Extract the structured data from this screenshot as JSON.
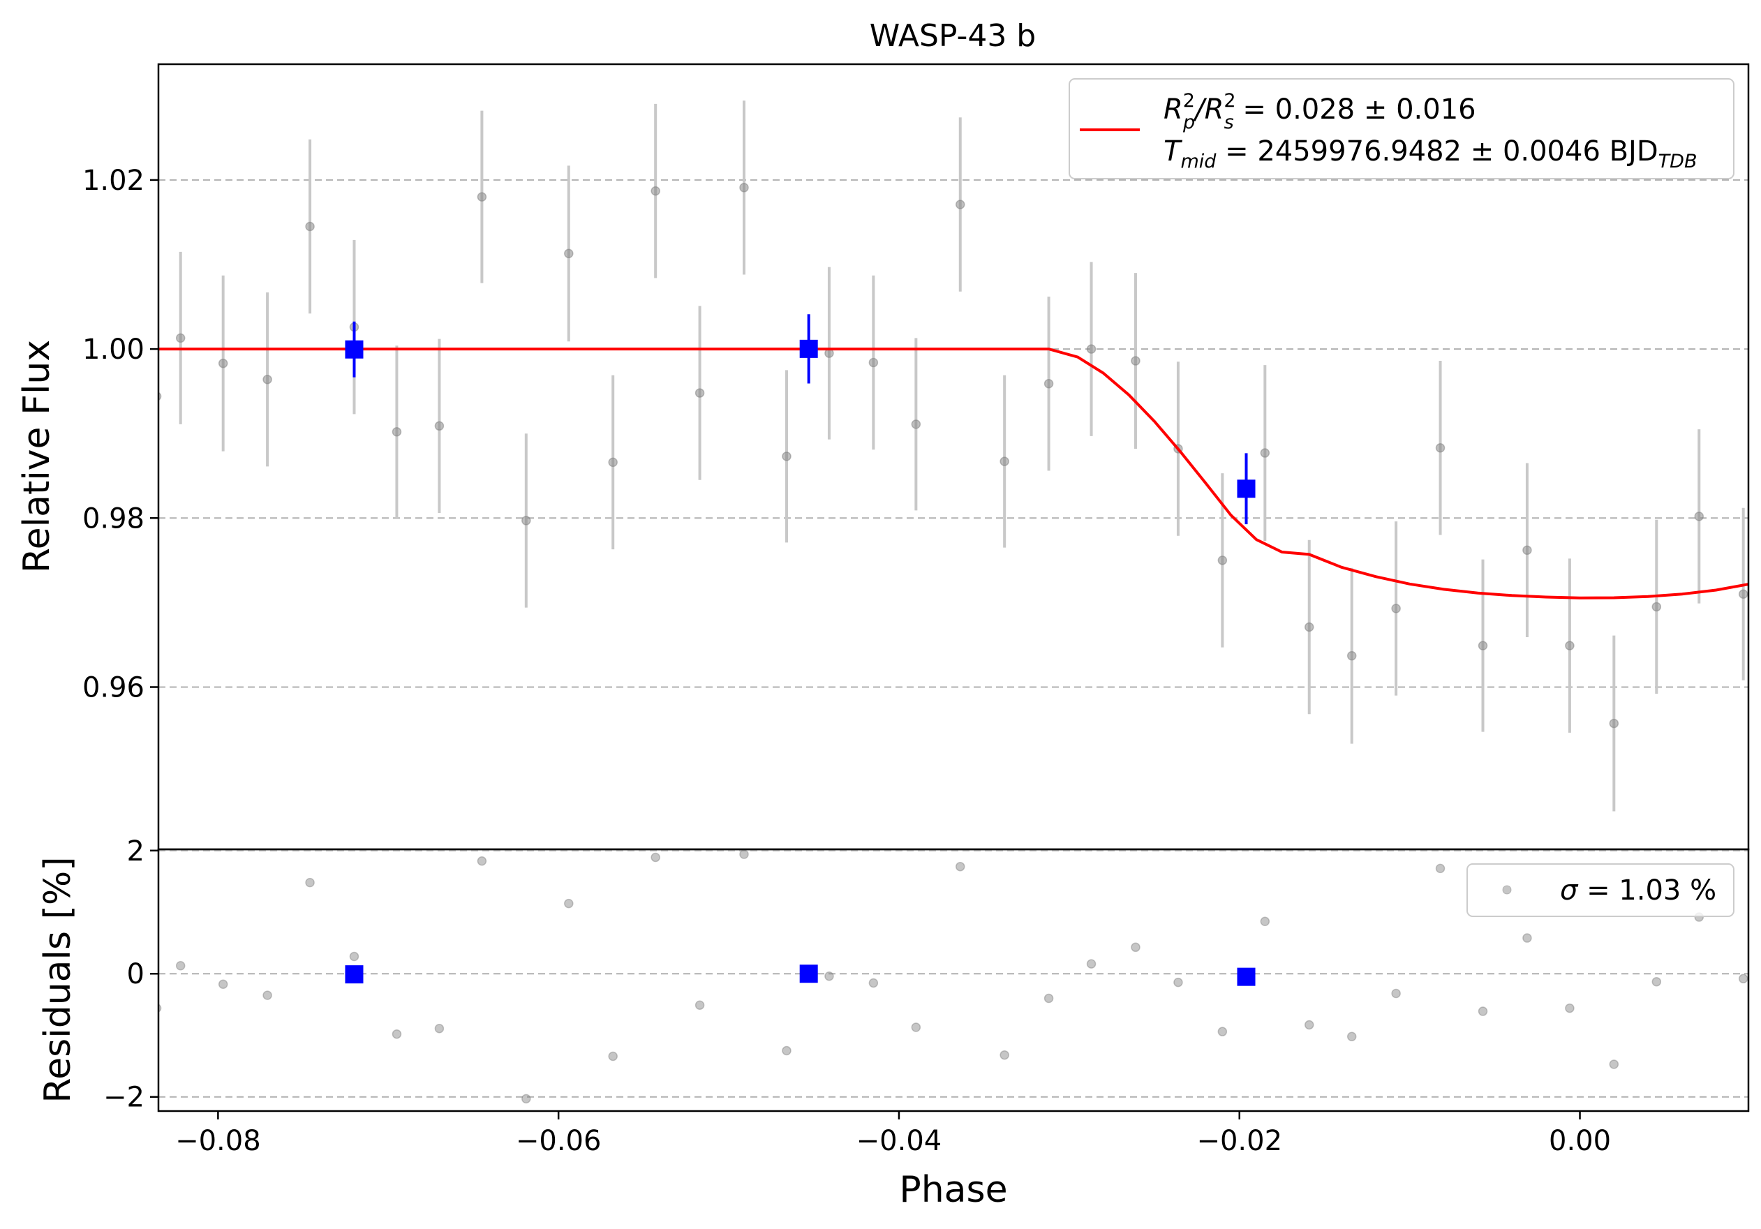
{
  "chart_data": {
    "type": "scatter",
    "title": "WASP-43 b",
    "xlabel": "Phase",
    "x_ticks": [
      -0.08,
      -0.06,
      -0.04,
      -0.02,
      0.0
    ],
    "x_tick_labels": [
      "−0.08",
      "−0.06",
      "−0.04",
      "−0.02",
      "0.00"
    ],
    "xlim": [
      -0.0835,
      0.0099
    ],
    "colors": {
      "data": "#808080",
      "errorbar": "#c8c8c8",
      "binned": "#0000ff",
      "model": "#ff0000",
      "grid": "#b0b0b0"
    },
    "panels": [
      {
        "id": "lightcurve",
        "ylabel": "Relative Flux",
        "ylim": [
          0.9408,
          1.0337
        ],
        "y_ticks": [
          0.96,
          0.98,
          1.0,
          1.02
        ],
        "y_tick_labels": [
          "0.96",
          "0.98",
          "1.00",
          "1.02"
        ],
        "grid": "horizontal dashed",
        "legend": {
          "position": "upper right",
          "line1": {
            "prefix": "R",
            "sup1": "2",
            "sub1": "p",
            "mid": "/R",
            "sup2": "2",
            "sub2": "s",
            "suffix": " = 0.028 ± 0.016"
          },
          "line2": {
            "prefix": "T",
            "sub1": "mid",
            "value": " = 2459976.9482 ± 0.0046 BJD",
            "sub2": "TDB"
          }
        },
        "series": [
          {
            "kind": "errorbar",
            "x": [
              -0.0836,
              -0.0822,
              -0.0797,
              -0.0771,
              -0.0746,
              -0.072,
              -0.0695,
              -0.067,
              -0.0645,
              -0.0619,
              -0.0594,
              -0.0568,
              -0.0543,
              -0.0517,
              -0.0491,
              -0.0466,
              -0.0441,
              -0.0415,
              -0.039,
              -0.0364,
              -0.0338,
              -0.0312,
              -0.0287,
              -0.0261,
              -0.0236,
              -0.021,
              -0.0185,
              -0.0159,
              -0.0134,
              -0.0108,
              -0.0082,
              -0.0057,
              -0.0031,
              -0.0006,
              0.002,
              0.0045,
              0.007,
              0.0096
            ],
            "y": [
              0.9944,
              1.0013,
              0.9983,
              0.9964,
              1.0145,
              1.0026,
              0.9902,
              0.9909,
              1.018,
              0.9797,
              1.0113,
              0.9866,
              1.0187,
              0.9948,
              1.0191,
              0.9873,
              0.9995,
              0.9984,
              0.9911,
              1.0171,
              0.9867,
              0.9959,
              1.0,
              0.9986,
              0.9882,
              0.975,
              0.9877,
              0.9671,
              0.9637,
              0.9693,
              0.9883,
              0.9649,
              0.9762,
              0.9649,
              0.9557,
              0.9695,
              0.9802,
              0.971
            ],
            "yerr": [
              0.0102,
              0.0102,
              0.0104,
              0.0103,
              0.0103,
              0.0103,
              0.0102,
              0.0103,
              0.0102,
              0.0103,
              0.0104,
              0.0103,
              0.0103,
              0.0103,
              0.0103,
              0.0102,
              0.0102,
              0.0103,
              0.0102,
              0.0103,
              0.0102,
              0.0103,
              0.0103,
              0.0104,
              0.0103,
              0.0103,
              0.0104,
              0.0103,
              0.0104,
              0.0103,
              0.0103,
              0.0102,
              0.0103,
              0.0103,
              0.0104,
              0.0103,
              0.0103,
              0.0102
            ]
          },
          {
            "kind": "binned",
            "x": [
              -0.072,
              -0.0453,
              -0.0196
            ],
            "y": [
              0.99995,
              1.00002,
              0.98347
            ],
            "yerr": [
              0.0033,
              0.0041,
              0.0042
            ]
          },
          {
            "kind": "model",
            "x": [
              -0.0835,
              -0.0312,
              -0.0295,
              -0.028,
              -0.0265,
              -0.025,
              -0.0235,
              -0.022,
              -0.0205,
              -0.019,
              -0.0175,
              -0.0159,
              -0.014,
              -0.012,
              -0.01,
              -0.008,
              -0.006,
              -0.004,
              -0.002,
              0.0,
              0.002,
              0.004,
              0.006,
              0.008,
              0.0099
            ],
            "y": [
              1.0,
              1.0,
              0.99905,
              0.99716,
              0.99458,
              0.99145,
              0.98793,
              0.98417,
              0.98034,
              0.97745,
              0.97598,
              0.9757,
              0.97418,
              0.97307,
              0.9722,
              0.97157,
              0.97113,
              0.97083,
              0.97065,
              0.97055,
              0.97057,
              0.97072,
              0.97101,
              0.97148,
              0.97217
            ]
          }
        ]
      },
      {
        "id": "residuals",
        "ylabel": "Residuals [%]",
        "ylim": [
          -2.23,
          2.02
        ],
        "y_ticks": [
          -2,
          0,
          2
        ],
        "y_tick_labels": [
          "−2",
          "0",
          "2"
        ],
        "grid": "horizontal dashed",
        "legend": {
          "position": "upper right",
          "symbol": "σ",
          "text": " = 1.03 %"
        },
        "series": [
          {
            "kind": "scatter",
            "x": [
              -0.0836,
              -0.0822,
              -0.0797,
              -0.0771,
              -0.0746,
              -0.072,
              -0.0695,
              -0.067,
              -0.0645,
              -0.0619,
              -0.0594,
              -0.0568,
              -0.0543,
              -0.0517,
              -0.0491,
              -0.0466,
              -0.0441,
              -0.0415,
              -0.039,
              -0.0364,
              -0.0338,
              -0.0312,
              -0.0287,
              -0.0261,
              -0.0236,
              -0.021,
              -0.0185,
              -0.0159,
              -0.0134,
              -0.0108,
              -0.0082,
              -0.0057,
              -0.0031,
              -0.0006,
              0.002,
              0.0045,
              0.007,
              0.0096
            ],
            "y": [
              -0.56,
              0.13,
              -0.17,
              -0.35,
              1.48,
              0.28,
              -0.98,
              -0.89,
              1.83,
              -2.03,
              1.14,
              -1.34,
              1.89,
              -0.51,
              1.94,
              -1.25,
              -0.04,
              -0.15,
              -0.87,
              1.74,
              -1.32,
              -0.4,
              0.16,
              0.43,
              -0.14,
              -0.94,
              0.85,
              -0.83,
              -1.02,
              -0.32,
              1.71,
              -0.61,
              0.58,
              -0.56,
              -1.47,
              -0.13,
              0.92,
              -0.08
            ]
          },
          {
            "kind": "binned",
            "x": [
              -0.072,
              -0.0453,
              -0.0196
            ],
            "y": [
              -0.01,
              0.0,
              -0.05
            ]
          }
        ]
      }
    ]
  }
}
